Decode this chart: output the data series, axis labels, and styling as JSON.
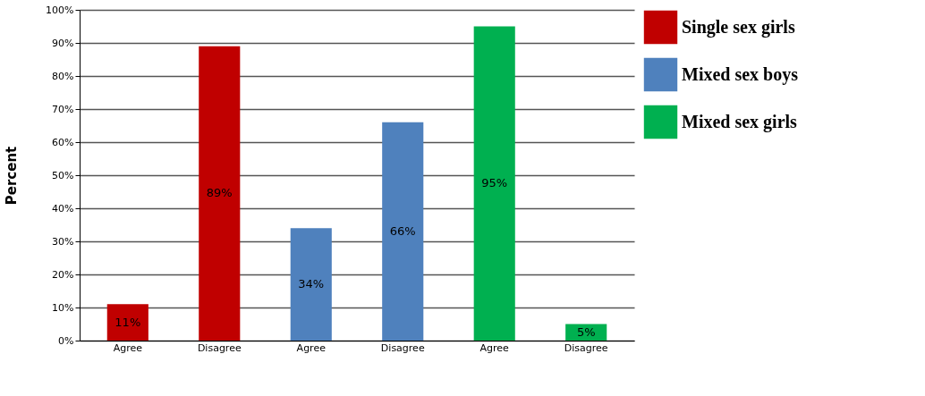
{
  "chart_data": {
    "type": "bar",
    "ylabel": "Percent",
    "categories": [
      "Agree",
      "Disagree",
      "Agree",
      "Disagree",
      "Agree",
      "Disagree"
    ],
    "series": [
      {
        "name": "Single sex girls",
        "color": "#c00000",
        "values": [
          11,
          89,
          null,
          null,
          null,
          null
        ],
        "value_labels": [
          "11%",
          "89%",
          null,
          null,
          null,
          null
        ]
      },
      {
        "name": "Mixed sex boys",
        "color": "#4f81bd",
        "values": [
          null,
          null,
          34,
          66,
          null,
          null
        ],
        "value_labels": [
          null,
          null,
          "34%",
          "66%",
          null,
          null
        ]
      },
      {
        "name": "Mixed sex girls",
        "color": "#00b050",
        "values": [
          null,
          null,
          null,
          null,
          95,
          5
        ],
        "value_labels": [
          null,
          null,
          null,
          null,
          "95%",
          "5%"
        ]
      }
    ],
    "ylim": [
      0,
      100
    ],
    "yticks": [
      {
        "value": 0,
        "label": "0%"
      },
      {
        "value": 10,
        "label": "10%"
      },
      {
        "value": 20,
        "label": "20%"
      },
      {
        "value": 30,
        "label": "30%"
      },
      {
        "value": 40,
        "label": "40%"
      },
      {
        "value": 50,
        "label": "50%"
      },
      {
        "value": 60,
        "label": "60%"
      },
      {
        "value": 70,
        "label": "70%"
      },
      {
        "value": 80,
        "label": "80%"
      },
      {
        "value": 90,
        "label": "90%"
      },
      {
        "value": 100,
        "label": "100%"
      }
    ],
    "grid": "y",
    "legend": "top right"
  }
}
